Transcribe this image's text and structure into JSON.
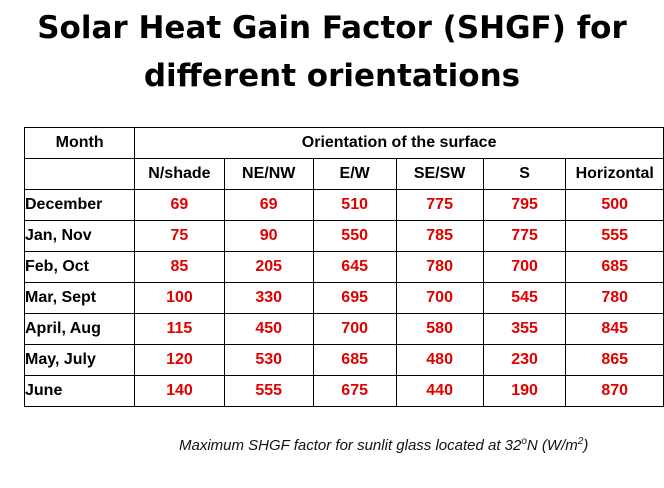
{
  "title": {
    "line1": "Solar Heat Gain Factor (SHGF) for",
    "line2": "different orientations"
  },
  "table": {
    "month_header": "Month",
    "group_header": "Orientation of the surface",
    "columns": [
      "N/shade",
      "NE/NW",
      "E/W",
      "SE/SW",
      "S",
      "Horizontal"
    ],
    "rows": [
      {
        "month": "December",
        "values": [
          "69",
          "69",
          "510",
          "775",
          "795",
          "500"
        ]
      },
      {
        "month": "Jan, Nov",
        "values": [
          "75",
          "90",
          "550",
          "785",
          "775",
          "555"
        ]
      },
      {
        "month": "Feb, Oct",
        "values": [
          "85",
          "205",
          "645",
          "780",
          "700",
          "685"
        ]
      },
      {
        "month": "Mar, Sept",
        "values": [
          "100",
          "330",
          "695",
          "700",
          "545",
          "780"
        ]
      },
      {
        "month": "April, Aug",
        "values": [
          "115",
          "450",
          "700",
          "580",
          "355",
          "845"
        ]
      },
      {
        "month": "May, July",
        "values": [
          "120",
          "530",
          "685",
          "480",
          "230",
          "865"
        ]
      },
      {
        "month": "June",
        "values": [
          "140",
          "555",
          "675",
          "440",
          "190",
          "870"
        ]
      }
    ]
  },
  "caption": {
    "text_before": "Maximum SHGF factor for sunlit glass located at 32",
    "degree_sup": "o",
    "text_mid": "N (W/m",
    "power_sup": "2",
    "text_after": ")"
  },
  "colors": {
    "value_text": "#e00000",
    "group_header_text": "#1b1fd8",
    "border": "#000000"
  }
}
